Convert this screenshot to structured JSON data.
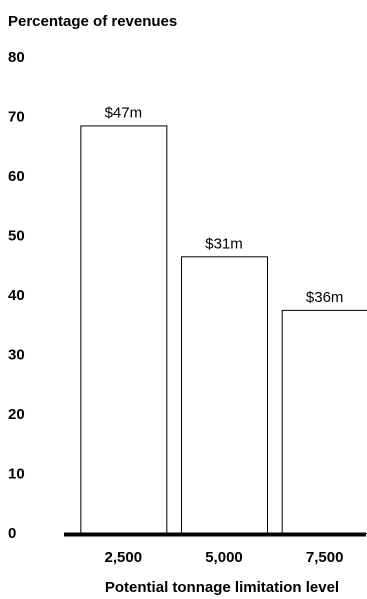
{
  "chart_data": {
    "type": "bar",
    "ylabel": "Percentage of revenues",
    "xlabel": "Potential tonnage limitation level",
    "categories": [
      "2,500",
      "5,000",
      "7,500"
    ],
    "values": [
      68.5,
      46.5,
      37.5
    ],
    "data_labels": [
      "$47m",
      "$31m",
      "$36m"
    ],
    "yticks": [
      "0",
      "10",
      "20",
      "30",
      "40",
      "50",
      "60",
      "70",
      "80"
    ],
    "ylim": [
      0,
      80
    ],
    "grid": false,
    "legend": "none",
    "bar_fill": "#ffffff",
    "bar_stroke": "#000000",
    "baseline_color": "#000000"
  }
}
